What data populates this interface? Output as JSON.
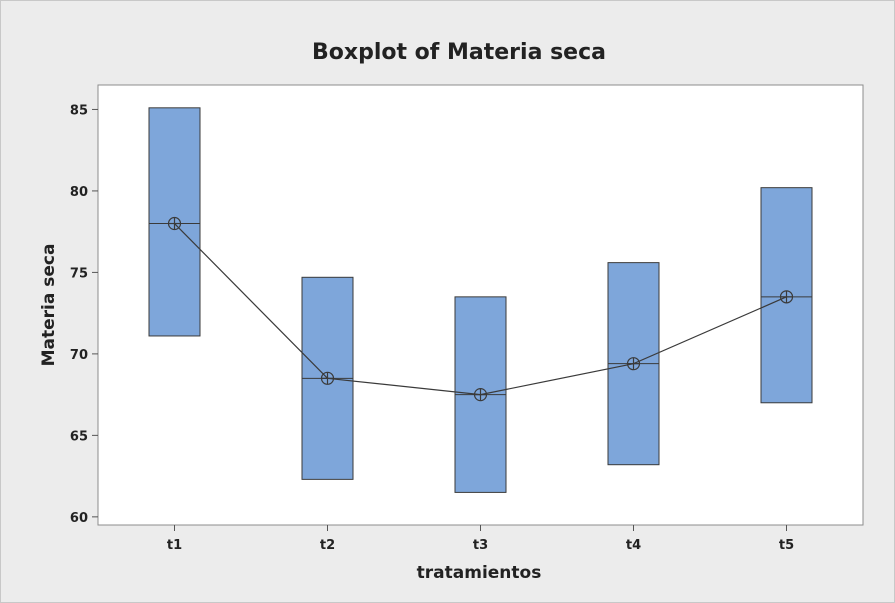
{
  "chart_data": {
    "type": "boxplot",
    "title": "Boxplot of Materia seca",
    "xlabel": "tratamientos",
    "ylabel": "Materia seca",
    "ylim": [
      59.5,
      86.5
    ],
    "yticks": [
      60,
      65,
      70,
      75,
      80,
      85
    ],
    "categories": [
      "t1",
      "t2",
      "t3",
      "t4",
      "t5"
    ],
    "boxes": [
      {
        "category": "t1",
        "q1": 71.1,
        "median": 78.0,
        "q3": 85.1,
        "mean": 78.0
      },
      {
        "category": "t2",
        "q1": 62.3,
        "median": 68.5,
        "q3": 74.7,
        "mean": 68.5
      },
      {
        "category": "t3",
        "q1": 61.5,
        "median": 67.5,
        "q3": 73.5,
        "mean": 67.5
      },
      {
        "category": "t4",
        "q1": 63.2,
        "median": 69.4,
        "q3": 75.6,
        "mean": 69.4
      },
      {
        "category": "t5",
        "q1": 67.0,
        "median": 73.5,
        "q3": 80.2,
        "mean": 73.5
      }
    ],
    "mean_connect_line": true,
    "grid": false,
    "colors": {
      "box_fill": "#7ea6da",
      "box_stroke": "#3a3a3a",
      "line": "#3a3a3a",
      "plot_background": "#ffffff",
      "figure_background": "#ececec"
    }
  }
}
